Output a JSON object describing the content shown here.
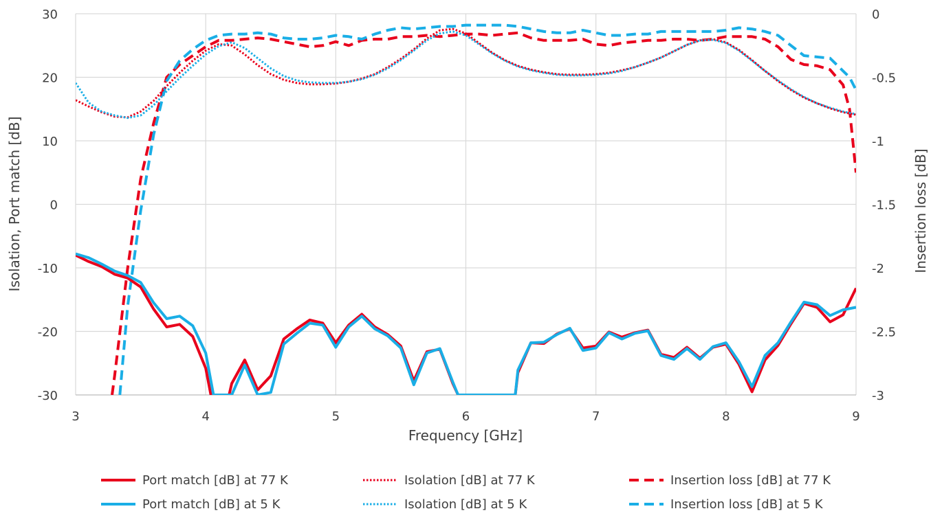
{
  "chart_data": {
    "type": "line",
    "xlabel": "Frequency [GHz]",
    "ylabel_left": "Isolation, Port match [dB]",
    "ylabel_right": "Insertion loss [dB]",
    "xlim": [
      3,
      9
    ],
    "ylim_left": [
      -30,
      30
    ],
    "ylim_right": [
      -3,
      0
    ],
    "x_ticks": [
      "3",
      "4",
      "5",
      "6",
      "7",
      "8",
      "9"
    ],
    "y_ticks_left": [
      "30",
      "20",
      "10",
      "0",
      "-10",
      "-20",
      "-30"
    ],
    "y_ticks_right": [
      "0",
      "-0.5",
      "-1",
      "-1.5",
      "-2",
      "-2.5",
      "-3"
    ],
    "grid": true,
    "legend_position": "bottom",
    "colors": {
      "red": "#e8001c",
      "blue": "#1aaee6",
      "grid": "#d9d9d9",
      "axis": "#bfbfbf"
    },
    "series": [
      {
        "name": "Port match [dB] at 77 K",
        "axis": "left",
        "color": "#e8001c",
        "dash": "solid",
        "x": [
          3.0,
          3.1,
          3.2,
          3.3,
          3.4,
          3.5,
          3.6,
          3.7,
          3.8,
          3.9,
          4.0,
          4.04,
          4.18,
          4.2,
          4.3,
          4.4,
          4.5,
          4.6,
          4.7,
          4.8,
          4.9,
          5.0,
          5.1,
          5.2,
          5.3,
          5.4,
          5.5,
          5.6,
          5.7,
          5.8,
          5.9,
          5.94,
          6.38,
          6.4,
          6.5,
          6.6,
          6.7,
          6.8,
          6.9,
          7.0,
          7.1,
          7.2,
          7.3,
          7.4,
          7.5,
          7.6,
          7.7,
          7.8,
          7.9,
          8.0,
          8.1,
          8.2,
          8.3,
          8.4,
          8.5,
          8.6,
          8.7,
          8.8,
          8.9,
          9.0
        ],
        "y": [
          -8.0,
          -9.0,
          -9.8,
          -11.0,
          -11.6,
          -13.0,
          -16.5,
          -19.3,
          -18.9,
          -20.8,
          -25.8,
          -30,
          -30,
          -28.2,
          -24.5,
          -29.2,
          -27.0,
          -21.2,
          -19.6,
          -18.2,
          -18.7,
          -21.8,
          -19.0,
          -17.3,
          -19.3,
          -20.5,
          -22.3,
          -27.8,
          -23.2,
          -22.8,
          -28.2,
          -30,
          -30,
          -26.5,
          -21.8,
          -21.9,
          -20.4,
          -19.6,
          -22.6,
          -22.3,
          -20.1,
          -20.9,
          -20.2,
          -19.8,
          -23.6,
          -24.1,
          -22.5,
          -24.2,
          -22.5,
          -22.0,
          -25.2,
          -29.5,
          -24.5,
          -22.2,
          -18.8,
          -15.6,
          -16.2,
          -18.5,
          -17.4,
          -13.2
        ]
      },
      {
        "name": "Port match [dB] at 5 K",
        "axis": "left",
        "color": "#1aaee6",
        "dash": "solid",
        "x": [
          3.0,
          3.1,
          3.2,
          3.3,
          3.4,
          3.5,
          3.6,
          3.7,
          3.8,
          3.9,
          4.0,
          4.06,
          4.2,
          4.3,
          4.4,
          4.5,
          4.6,
          4.7,
          4.8,
          4.9,
          5.0,
          5.1,
          5.2,
          5.3,
          5.4,
          5.5,
          5.6,
          5.7,
          5.8,
          5.9,
          5.94,
          6.38,
          6.4,
          6.5,
          6.6,
          6.7,
          6.8,
          6.9,
          7.0,
          7.1,
          7.2,
          7.3,
          7.4,
          7.5,
          7.6,
          7.7,
          7.8,
          7.9,
          8.0,
          8.1,
          8.2,
          8.3,
          8.4,
          8.5,
          8.6,
          8.7,
          8.8,
          8.9,
          9.0
        ],
        "y": [
          -7.8,
          -8.4,
          -9.4,
          -10.5,
          -11.2,
          -12.3,
          -15.5,
          -18.0,
          -17.6,
          -19.1,
          -23.4,
          -30,
          -30,
          -25.3,
          -30,
          -29.6,
          -22.0,
          -20.3,
          -18.7,
          -19.0,
          -22.5,
          -19.3,
          -17.6,
          -19.6,
          -20.7,
          -22.6,
          -28.4,
          -23.4,
          -22.7,
          -28.0,
          -30,
          -30,
          -26.1,
          -21.8,
          -21.7,
          -20.5,
          -19.5,
          -23.0,
          -22.6,
          -20.2,
          -21.2,
          -20.3,
          -19.9,
          -23.8,
          -24.4,
          -22.7,
          -24.4,
          -22.4,
          -21.8,
          -24.8,
          -28.7,
          -23.8,
          -21.8,
          -18.5,
          -15.4,
          -15.8,
          -17.5,
          -16.6,
          -16.2
        ]
      },
      {
        "name": "Isolation [dB] at 77 K",
        "axis": "left",
        "color": "#e8001c",
        "dash": "dotted",
        "x": [
          3.0,
          3.1,
          3.2,
          3.3,
          3.4,
          3.5,
          3.6,
          3.7,
          3.8,
          3.9,
          4.0,
          4.1,
          4.2,
          4.3,
          4.4,
          4.5,
          4.6,
          4.7,
          4.8,
          4.9,
          5.0,
          5.1,
          5.2,
          5.3,
          5.4,
          5.5,
          5.6,
          5.7,
          5.8,
          5.9,
          6.0,
          6.1,
          6.2,
          6.3,
          6.4,
          6.5,
          6.6,
          6.7,
          6.8,
          6.9,
          7.0,
          7.1,
          7.2,
          7.3,
          7.4,
          7.5,
          7.6,
          7.7,
          7.8,
          7.9,
          8.0,
          8.1,
          8.2,
          8.3,
          8.4,
          8.5,
          8.6,
          8.7,
          8.8,
          8.9,
          9.0
        ],
        "y": [
          16.4,
          15.4,
          14.5,
          13.8,
          13.7,
          14.6,
          16.3,
          18.6,
          20.7,
          22.6,
          24.2,
          25.2,
          25.0,
          23.6,
          21.9,
          20.5,
          19.6,
          19.1,
          18.9,
          18.9,
          19.0,
          19.3,
          19.8,
          20.5,
          21.6,
          22.9,
          24.4,
          26.1,
          27.4,
          27.6,
          26.9,
          25.4,
          23.9,
          22.7,
          21.8,
          21.2,
          20.8,
          20.5,
          20.4,
          20.4,
          20.5,
          20.7,
          21.1,
          21.6,
          22.3,
          23.1,
          24.1,
          25.1,
          25.8,
          26.0,
          25.5,
          24.3,
          22.7,
          21.0,
          19.4,
          18.0,
          16.8,
          15.9,
          15.1,
          14.5,
          14.1
        ]
      },
      {
        "name": "Isolation [dB] at 5 K",
        "axis": "left",
        "color": "#1aaee6",
        "dash": "dotted",
        "x": [
          3.0,
          3.1,
          3.2,
          3.3,
          3.4,
          3.5,
          3.6,
          3.7,
          3.8,
          3.9,
          4.0,
          4.1,
          4.2,
          4.3,
          4.4,
          4.5,
          4.6,
          4.7,
          4.8,
          4.9,
          5.0,
          5.1,
          5.2,
          5.3,
          5.4,
          5.5,
          5.6,
          5.7,
          5.8,
          5.9,
          6.0,
          6.1,
          6.2,
          6.3,
          6.4,
          6.5,
          6.6,
          6.7,
          6.8,
          6.9,
          7.0,
          7.1,
          7.2,
          7.3,
          7.4,
          7.5,
          7.6,
          7.7,
          7.8,
          7.9,
          8.0,
          8.1,
          8.2,
          8.3,
          8.4,
          8.5,
          8.6,
          8.7,
          8.8,
          8.9,
          9.0
        ],
        "y": [
          19.1,
          16.0,
          14.6,
          14.0,
          13.6,
          14.0,
          15.6,
          17.8,
          19.9,
          21.8,
          23.6,
          24.9,
          25.5,
          24.6,
          23.0,
          21.4,
          20.2,
          19.5,
          19.2,
          19.1,
          19.1,
          19.3,
          19.7,
          20.4,
          21.4,
          22.7,
          24.2,
          25.8,
          26.9,
          27.2,
          26.6,
          25.2,
          23.8,
          22.6,
          21.7,
          21.1,
          20.7,
          20.4,
          20.3,
          20.3,
          20.4,
          20.6,
          21.0,
          21.6,
          22.3,
          23.1,
          24.1,
          25.1,
          25.8,
          25.9,
          25.4,
          24.2,
          22.6,
          21.0,
          19.5,
          18.1,
          16.9,
          15.9,
          15.2,
          14.6,
          14.2
        ]
      },
      {
        "name": "Insertion loss [dB] at 77 K",
        "axis": "right",
        "color": "#e8001c",
        "dash": "dashed",
        "x": [
          3.28,
          3.3,
          3.4,
          3.5,
          3.6,
          3.7,
          3.8,
          3.9,
          4.0,
          4.1,
          4.2,
          4.3,
          4.4,
          4.5,
          4.6,
          4.7,
          4.8,
          4.9,
          5.0,
          5.1,
          5.2,
          5.3,
          5.4,
          5.5,
          5.6,
          5.7,
          5.8,
          5.9,
          6.0,
          6.1,
          6.2,
          6.3,
          6.4,
          6.5,
          6.6,
          6.7,
          6.8,
          6.9,
          7.0,
          7.1,
          7.2,
          7.3,
          7.4,
          7.5,
          7.6,
          7.7,
          7.8,
          7.9,
          8.0,
          8.1,
          8.2,
          8.3,
          8.4,
          8.5,
          8.6,
          8.7,
          8.8,
          8.9,
          8.95,
          9.0
        ],
        "y": [
          -3.0,
          -2.85,
          -2.0,
          -1.3,
          -0.86,
          -0.5,
          -0.4,
          -0.33,
          -0.26,
          -0.21,
          -0.21,
          -0.2,
          -0.19,
          -0.2,
          -0.22,
          -0.24,
          -0.26,
          -0.25,
          -0.22,
          -0.25,
          -0.21,
          -0.2,
          -0.2,
          -0.18,
          -0.18,
          -0.17,
          -0.18,
          -0.17,
          -0.16,
          -0.16,
          -0.17,
          -0.16,
          -0.15,
          -0.19,
          -0.21,
          -0.21,
          -0.21,
          -0.2,
          -0.24,
          -0.25,
          -0.23,
          -0.22,
          -0.21,
          -0.21,
          -0.2,
          -0.2,
          -0.21,
          -0.2,
          -0.18,
          -0.18,
          -0.18,
          -0.2,
          -0.26,
          -0.36,
          -0.4,
          -0.41,
          -0.44,
          -0.56,
          -0.75,
          -1.25
        ]
      },
      {
        "name": "Insertion loss [dB] at 5 K",
        "axis": "right",
        "color": "#1aaee6",
        "dash": "dashed",
        "x": [
          3.34,
          3.4,
          3.5,
          3.6,
          3.7,
          3.8,
          3.9,
          4.0,
          4.1,
          4.2,
          4.3,
          4.4,
          4.5,
          4.6,
          4.7,
          4.8,
          4.9,
          5.0,
          5.1,
          5.2,
          5.3,
          5.4,
          5.5,
          5.6,
          5.7,
          5.8,
          5.9,
          6.0,
          6.1,
          6.2,
          6.3,
          6.4,
          6.5,
          6.6,
          6.7,
          6.8,
          6.9,
          7.0,
          7.1,
          7.2,
          7.3,
          7.4,
          7.5,
          7.6,
          7.7,
          7.8,
          7.9,
          8.0,
          8.1,
          8.2,
          8.3,
          8.4,
          8.5,
          8.6,
          8.7,
          8.8,
          8.9,
          8.95,
          9.0
        ],
        "y": [
          -3.0,
          -2.3,
          -1.55,
          -0.95,
          -0.53,
          -0.37,
          -0.28,
          -0.21,
          -0.17,
          -0.16,
          -0.16,
          -0.15,
          -0.16,
          -0.19,
          -0.2,
          -0.2,
          -0.19,
          -0.17,
          -0.18,
          -0.2,
          -0.16,
          -0.13,
          -0.11,
          -0.12,
          -0.11,
          -0.1,
          -0.1,
          -0.09,
          -0.09,
          -0.09,
          -0.09,
          -0.1,
          -0.12,
          -0.14,
          -0.15,
          -0.15,
          -0.13,
          -0.15,
          -0.17,
          -0.17,
          -0.16,
          -0.16,
          -0.14,
          -0.14,
          -0.14,
          -0.14,
          -0.14,
          -0.13,
          -0.11,
          -0.12,
          -0.14,
          -0.17,
          -0.25,
          -0.33,
          -0.34,
          -0.35,
          -0.45,
          -0.5,
          -0.6
        ]
      }
    ]
  }
}
